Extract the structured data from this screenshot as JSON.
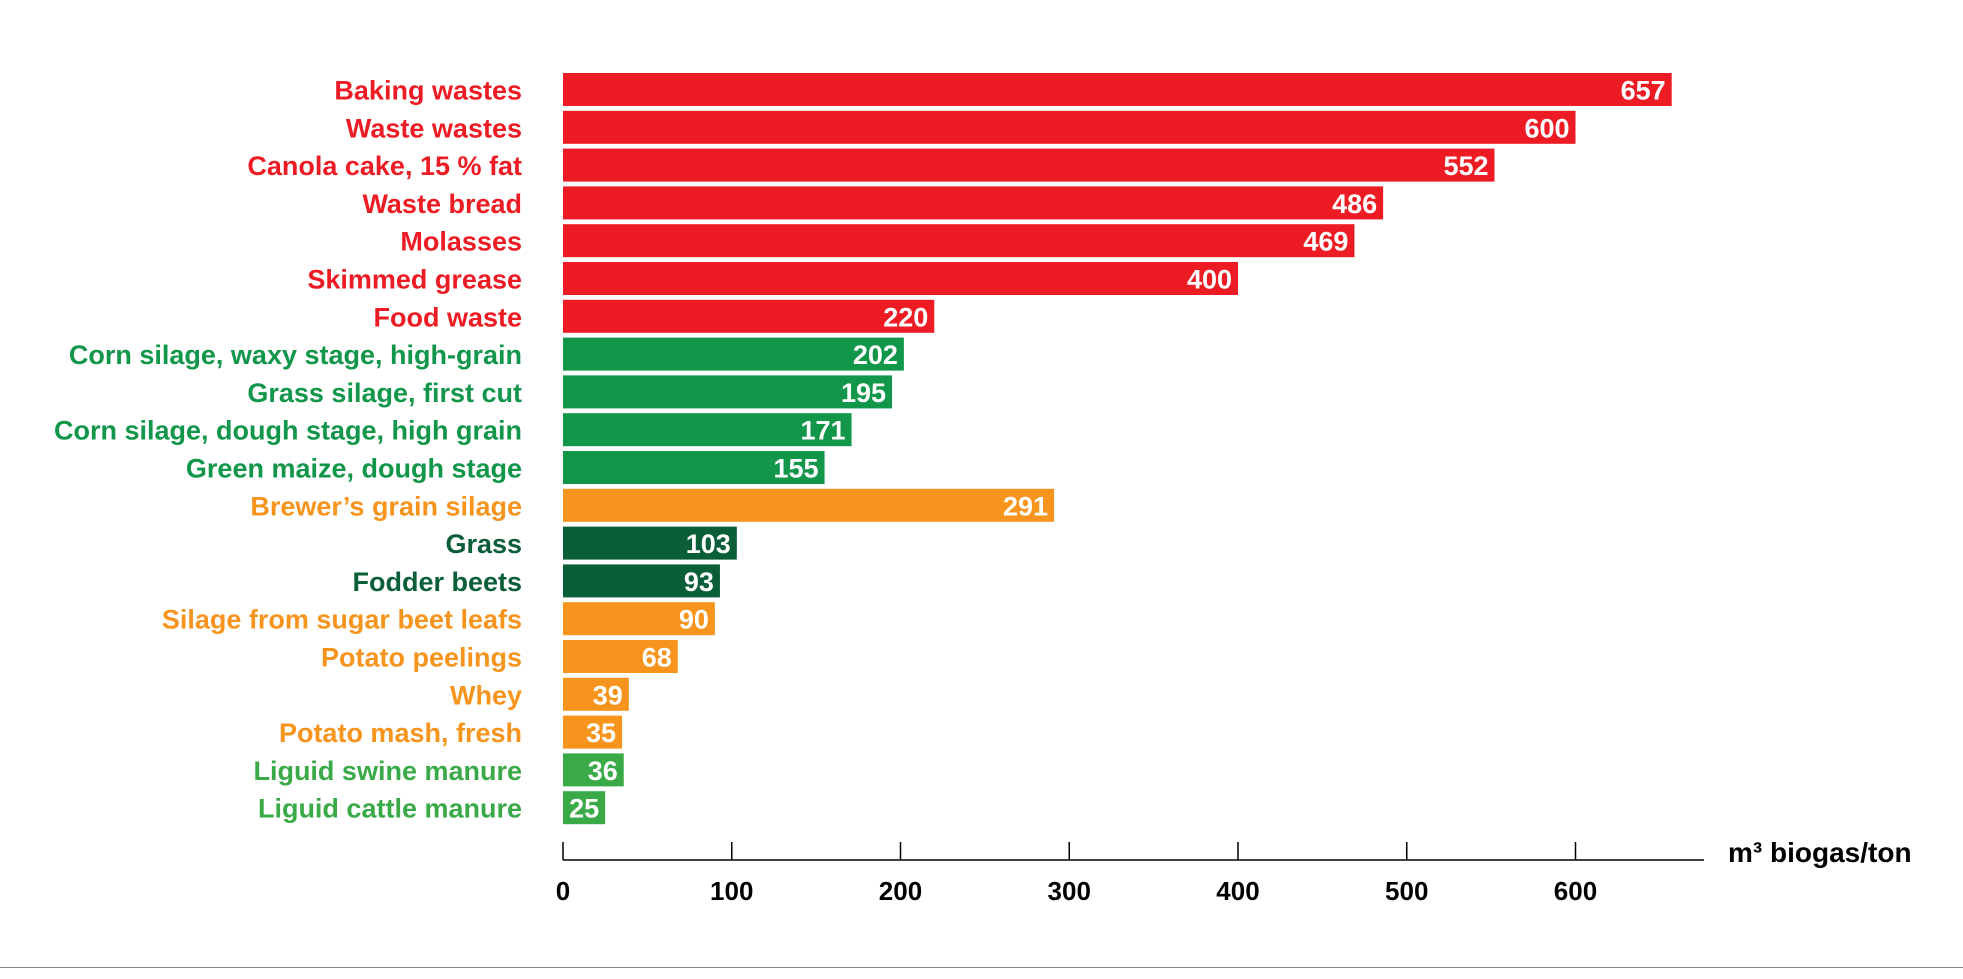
{
  "chart_data": {
    "type": "bar",
    "orientation": "horizontal",
    "title": "",
    "xlabel": "m³ biogas/ton",
    "ylabel": "",
    "xlim": [
      0,
      675
    ],
    "x_ticks": [
      0,
      100,
      200,
      300,
      400,
      500,
      600
    ],
    "grid": false,
    "legend": "none",
    "colors": {
      "red": "#ed1c24",
      "green": "#12964a",
      "darkgreen": "#0a5f38",
      "orange": "#f7941d",
      "lightgreen": "#3aaa48"
    },
    "categories": [
      "Baking wastes",
      "Waste wastes",
      "Canola cake, 15 % fat",
      "Waste bread",
      "Molasses",
      "Skimmed grease",
      "Food waste",
      "Corn silage, waxy stage, high-grain",
      "Grass silage, first cut",
      "Corn silage, dough stage, high grain",
      "Green maize, dough stage",
      "Brewer’s grain silage",
      "Grass",
      "Fodder beets",
      "Silage from sugar beet leafs",
      "Potato peelings",
      "Whey",
      "Potato mash, fresh",
      "Liguid swine manure",
      "Liguid cattle manure"
    ],
    "values": [
      657,
      600,
      552,
      486,
      469,
      400,
      220,
      202,
      195,
      171,
      155,
      291,
      103,
      93,
      90,
      68,
      39,
      35,
      36,
      25
    ],
    "bar_colors": [
      "red",
      "red",
      "red",
      "red",
      "red",
      "red",
      "red",
      "green",
      "green",
      "green",
      "green",
      "orange",
      "darkgreen",
      "darkgreen",
      "orange",
      "orange",
      "orange",
      "orange",
      "lightgreen",
      "lightgreen"
    ]
  }
}
